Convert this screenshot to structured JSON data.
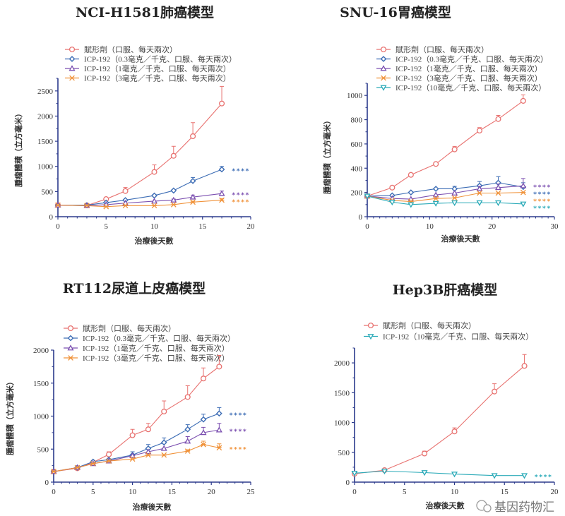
{
  "colors": {
    "axis": "#2b3a8c",
    "vehicle": "#e8716f",
    "dose_0_3": "#3d6db5",
    "dose_1": "#7b4fb0",
    "dose_3": "#f0923a",
    "dose_10": "#2aaab8"
  },
  "watermark": "基因药物汇",
  "chart_data": [
    {
      "type": "line",
      "title": "NCI-H1581肺癌模型",
      "xlabel": "治療後天數",
      "ylabel": "腫瘤體積（立方毫米）",
      "xlim": [
        0,
        20
      ],
      "ylim": [
        0,
        2750
      ],
      "xticks": [
        0,
        5,
        10,
        15,
        20
      ],
      "yticks": [
        0,
        500,
        1000,
        1500,
        2000,
        2500
      ],
      "legend_placement": "top",
      "x": [
        0,
        3,
        5,
        7,
        10,
        12,
        14,
        17
      ],
      "series": [
        {
          "name": "賦形劑（口服、每天兩次）",
          "marker": "circle",
          "color": "#e8716f",
          "values": [
            230,
            225,
            350,
            510,
            890,
            1210,
            1600,
            2250
          ],
          "error": [
            0,
            0,
            20,
            70,
            140,
            190,
            270,
            340
          ],
          "significance": ""
        },
        {
          "name": "ICP-192（0.3毫克／千克、口服、每天兩次）",
          "marker": "diamond",
          "color": "#3d6db5",
          "values": [
            230,
            230,
            280,
            330,
            420,
            520,
            710,
            940
          ],
          "error": [
            0,
            0,
            0,
            0,
            20,
            20,
            70,
            60
          ],
          "significance": "****"
        },
        {
          "name": "ICP-192（1毫克／千克、口服、每天兩次）",
          "marker": "triangle-up",
          "color": "#7b4fb0",
          "values": [
            230,
            220,
            240,
            270,
            310,
            330,
            390,
            460
          ],
          "error": [
            0,
            0,
            0,
            0,
            0,
            20,
            40,
            50
          ],
          "significance": "****"
        },
        {
          "name": "ICP-192（3毫克／千克、口服、每天兩次）",
          "marker": "x",
          "color": "#f0923a",
          "values": [
            230,
            220,
            200,
            220,
            220,
            240,
            290,
            330
          ],
          "error": [
            0,
            0,
            0,
            0,
            0,
            0,
            20,
            30
          ],
          "significance": "****"
        }
      ]
    },
    {
      "type": "line",
      "title": "SNU-16胃癌模型",
      "xlabel": "治療後天數",
      "ylabel": "腫瘤體積（立方毫米）",
      "xlim": [
        0,
        30
      ],
      "ylim": [
        0,
        1100
      ],
      "xticks": [
        0,
        10,
        20,
        30
      ],
      "yticks": [
        0,
        200,
        400,
        600,
        800,
        1000
      ],
      "legend_placement": "top",
      "x": [
        0,
        4,
        7,
        11,
        14,
        18,
        21,
        25
      ],
      "series": [
        {
          "name": "賦形劑（口服、每天兩次）",
          "marker": "circle",
          "color": "#e8716f",
          "values": [
            170,
            240,
            345,
            435,
            555,
            710,
            805,
            955
          ],
          "error": [
            0,
            0,
            10,
            10,
            25,
            25,
            30,
            50
          ],
          "significance": ""
        },
        {
          "name": "ICP-192（0.3毫克／千克、口服、每天兩次）",
          "marker": "diamond",
          "color": "#3d6db5",
          "values": [
            170,
            175,
            200,
            230,
            230,
            255,
            280,
            245
          ],
          "error": [
            0,
            0,
            0,
            0,
            20,
            35,
            50,
            35
          ],
          "significance": "****"
        },
        {
          "name": "ICP-192（1毫克／千克、口服、每天兩次）",
          "marker": "triangle-up",
          "color": "#7b4fb0",
          "values": [
            170,
            150,
            145,
            180,
            195,
            230,
            240,
            255
          ],
          "error": [
            0,
            0,
            0,
            0,
            0,
            20,
            30,
            60
          ],
          "significance": "****"
        },
        {
          "name": "ICP-192（3毫克／千克、口服、每天兩次）",
          "marker": "x",
          "color": "#f0923a",
          "values": [
            170,
            135,
            125,
            150,
            155,
            195,
            195,
            200
          ],
          "error": [
            0,
            0,
            0,
            0,
            0,
            0,
            0,
            0
          ],
          "significance": "****"
        },
        {
          "name": "ICP-192（10毫克／千克、口服、每天兩次）",
          "marker": "triangle-down",
          "color": "#2aaab8",
          "values": [
            170,
            120,
            100,
            110,
            115,
            115,
            115,
            105
          ],
          "error": [
            0,
            0,
            0,
            0,
            0,
            0,
            0,
            0
          ],
          "significance": "****"
        }
      ]
    },
    {
      "type": "line",
      "title": "RT112尿道上皮癌模型",
      "xlabel": "治療後天數",
      "ylabel": "腫瘤體積（立方毫米）",
      "xlim": [
        0,
        25
      ],
      "ylim": [
        0,
        2000
      ],
      "xticks": [
        0,
        5,
        10,
        15,
        20,
        25
      ],
      "yticks": [
        0,
        500,
        1000,
        1500,
        2000
      ],
      "legend_placement": "top",
      "x": [
        0,
        3,
        5,
        7,
        10,
        12,
        14,
        17,
        19,
        21
      ],
      "series": [
        {
          "name": "賦形劑（口服、每天兩次）",
          "marker": "circle",
          "color": "#e8716f",
          "values": [
            160,
            210,
            300,
            420,
            710,
            800,
            1070,
            1290,
            1570,
            1750
          ],
          "error": [
            0,
            0,
            0,
            40,
            90,
            90,
            160,
            170,
            160,
            170
          ],
          "significance": ""
        },
        {
          "name": "ICP-192（0.3毫克／千克、口服、每天兩次）",
          "marker": "diamond",
          "color": "#3d6db5",
          "values": [
            160,
            220,
            310,
            340,
            410,
            510,
            600,
            800,
            950,
            1040
          ],
          "error": [
            0,
            0,
            0,
            0,
            50,
            60,
            70,
            70,
            80,
            90
          ],
          "significance": "****"
        },
        {
          "name": "ICP-192（1毫克／千克、口服、每天兩次）",
          "marker": "triangle-up",
          "color": "#7b4fb0",
          "values": [
            160,
            220,
            280,
            320,
            400,
            460,
            510,
            620,
            750,
            790
          ],
          "error": [
            0,
            0,
            0,
            0,
            0,
            0,
            0,
            70,
            80,
            100
          ],
          "significance": "****"
        },
        {
          "name": "ICP-192（3毫克／千克、口服、每天兩次）",
          "marker": "x",
          "color": "#f0923a",
          "values": [
            160,
            220,
            280,
            320,
            350,
            410,
            410,
            470,
            570,
            520
          ],
          "error": [
            0,
            0,
            0,
            0,
            0,
            0,
            0,
            20,
            50,
            60
          ],
          "significance": "****"
        }
      ]
    },
    {
      "type": "line",
      "title": "Hep3B肝癌模型",
      "xlabel": "治療後天數",
      "ylabel": "",
      "xlim": [
        0,
        20
      ],
      "ylim": [
        0,
        2250
      ],
      "xticks": [
        0,
        5,
        10,
        15,
        20
      ],
      "yticks": [
        0,
        500,
        1000,
        1500,
        2000
      ],
      "legend_placement": "top",
      "x": [
        0,
        3,
        7,
        10,
        14,
        17
      ],
      "series": [
        {
          "name": "賦形劑（口服、每天兩次）",
          "marker": "circle",
          "color": "#e8716f",
          "values": [
            140,
            200,
            480,
            850,
            1520,
            1950
          ],
          "error": [
            0,
            0,
            40,
            60,
            130,
            190
          ],
          "significance": ""
        },
        {
          "name": "ICP-192（10毫克／千克、口服、每天兩次）",
          "marker": "triangle-down",
          "color": "#2aaab8",
          "values": [
            150,
            185,
            160,
            135,
            110,
            110
          ],
          "error": [
            0,
            0,
            0,
            0,
            0,
            0
          ],
          "significance": "****"
        }
      ]
    }
  ]
}
